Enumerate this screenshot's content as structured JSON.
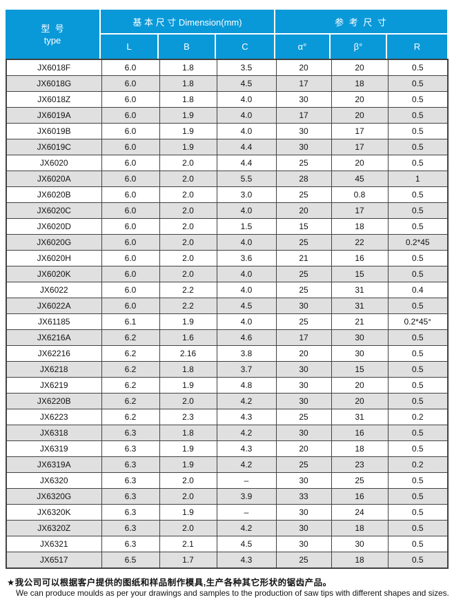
{
  "colors": {
    "header_bg": "#0a99d8",
    "header_text": "#ffffff",
    "alt_row_bg": "#e0e0e0",
    "grid_border": "#404040"
  },
  "table": {
    "header": {
      "model_cn": "型  号",
      "model_en": "type",
      "dimension_group": "基 本 尺 寸 Dimension(mm)",
      "reference_group": "参 考 尺 寸",
      "columns": [
        "L",
        "B",
        "C",
        "α°",
        "β°",
        "R"
      ]
    },
    "rows": [
      [
        "JX6018F",
        "6.0",
        "1.8",
        "3.5",
        "20",
        "20",
        "0.5"
      ],
      [
        "JX6018G",
        "6.0",
        "1.8",
        "4.5",
        "17",
        "18",
        "0.5"
      ],
      [
        "JX6018Z",
        "6.0",
        "1.8",
        "4.0",
        "30",
        "20",
        "0.5"
      ],
      [
        "JX6019A",
        "6.0",
        "1.9",
        "4.0",
        "17",
        "20",
        "0.5"
      ],
      [
        "JX6019B",
        "6.0",
        "1.9",
        "4.0",
        "30",
        "17",
        "0.5"
      ],
      [
        "JX6019C",
        "6.0",
        "1.9",
        "4.4",
        "30",
        "17",
        "0.5"
      ],
      [
        "JX6020",
        "6.0",
        "2.0",
        "4.4",
        "25",
        "20",
        "0.5"
      ],
      [
        "JX6020A",
        "6.0",
        "2.0",
        "5.5",
        "28",
        "45",
        "1"
      ],
      [
        "JX6020B",
        "6.0",
        "2.0",
        "3.0",
        "25",
        "0.8",
        "0.5"
      ],
      [
        "JX6020C",
        "6.0",
        "2.0",
        "4.0",
        "20",
        "17",
        "0.5"
      ],
      [
        "JX6020D",
        "6.0",
        "2.0",
        "1.5",
        "15",
        "18",
        "0.5"
      ],
      [
        "JX6020G",
        "6.0",
        "2.0",
        "4.0",
        "25",
        "22",
        "0.2*45"
      ],
      [
        "JX6020H",
        "6.0",
        "2.0",
        "3.6",
        "21",
        "16",
        "0.5"
      ],
      [
        "JX6020K",
        "6.0",
        "2.0",
        "4.0",
        "25",
        "15",
        "0.5"
      ],
      [
        "JX6022",
        "6.0",
        "2.2",
        "4.0",
        "25",
        "31",
        "0.4"
      ],
      [
        "JX6022A",
        "6.0",
        "2.2",
        "4.5",
        "30",
        "31",
        "0.5"
      ],
      [
        "JX61185",
        "6.1",
        "1.9",
        "4.0",
        "25",
        "21",
        "0.2*45°"
      ],
      [
        "JX6216A",
        "6.2",
        "1.6",
        "4.6",
        "17",
        "30",
        "0.5"
      ],
      [
        "JX62216",
        "6.2",
        "2.16",
        "3.8",
        "20",
        "30",
        "0.5"
      ],
      [
        "JX6218",
        "6.2",
        "1.8",
        "3.7",
        "30",
        "15",
        "0.5"
      ],
      [
        "JX6219",
        "6.2",
        "1.9",
        "4.8",
        "30",
        "20",
        "0.5"
      ],
      [
        "JX6220B",
        "6.2",
        "2.0",
        "4.2",
        "30",
        "20",
        "0.5"
      ],
      [
        "JX6223",
        "6.2",
        "2.3",
        "4.3",
        "25",
        "31",
        "0.2"
      ],
      [
        "JX6318",
        "6.3",
        "1.8",
        "4.2",
        "30",
        "16",
        "0.5"
      ],
      [
        "JX6319",
        "6.3",
        "1.9",
        "4.3",
        "20",
        "18",
        "0.5"
      ],
      [
        "JX6319A",
        "6.3",
        "1.9",
        "4.2",
        "25",
        "23",
        "0.2"
      ],
      [
        "JX6320",
        "6.3",
        "2.0",
        "–",
        "30",
        "25",
        "0.5"
      ],
      [
        "JX6320G",
        "6.3",
        "2.0",
        "3.9",
        "33",
        "16",
        "0.5"
      ],
      [
        "JX6320K",
        "6.3",
        "1.9",
        "–",
        "30",
        "24",
        "0.5"
      ],
      [
        "JX6320Z",
        "6.3",
        "2.0",
        "4.2",
        "30",
        "18",
        "0.5"
      ],
      [
        "JX6321",
        "6.3",
        "2.1",
        "4.5",
        "30",
        "30",
        "0.5"
      ],
      [
        "JX6517",
        "6.5",
        "1.7",
        "4.3",
        "25",
        "18",
        "0.5"
      ]
    ]
  },
  "footer": {
    "cn": "★我公司可以根据客户提供的图纸和样品制作模具,生产各种其它形状的锯齿产品。",
    "en": "We can produce moulds as per your drawings and samples to the production of saw tips with different shapes and sizes."
  }
}
